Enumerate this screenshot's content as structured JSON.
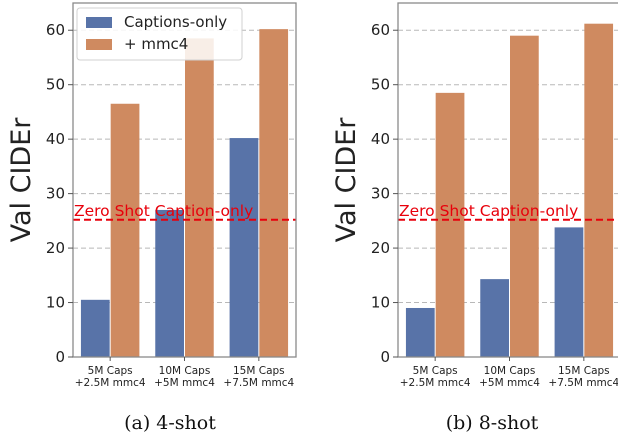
{
  "chart_data": [
    {
      "type": "bar",
      "caption": "(a) 4-shot",
      "ylabel": "Val CIDEr",
      "ylim": [
        0,
        65
      ],
      "yticks": [
        "0",
        "10",
        "20",
        "30",
        "40",
        "50",
        "60"
      ],
      "categories": [
        [
          "5M Caps",
          "+2.5M mmc4"
        ],
        [
          "10M Caps",
          "+5M mmc4"
        ],
        [
          "15M Caps",
          "+7.5M mmc4"
        ]
      ],
      "series": [
        {
          "name": "Captions-only",
          "color": "#5873a8",
          "values": [
            10.5,
            27.0,
            40.2
          ]
        },
        {
          "name": "+ mmc4",
          "color": "#cf8a60",
          "values": [
            46.5,
            58.5,
            60.2
          ]
        }
      ],
      "reference_line": {
        "label": "Zero Shot Caption-only",
        "value": 25.2,
        "color": "#e8000b"
      },
      "grid": "horizontal dashed",
      "legend": "top-left"
    },
    {
      "type": "bar",
      "caption": "(b) 8-shot",
      "ylabel": "Val CIDEr",
      "ylim": [
        0,
        65
      ],
      "yticks": [
        "0",
        "10",
        "20",
        "30",
        "40",
        "50",
        "60"
      ],
      "categories": [
        [
          "5M Caps",
          "+2.5M mmc4"
        ],
        [
          "10M Caps",
          "+5M mmc4"
        ],
        [
          "15M Caps",
          "+7.5M mmc4"
        ]
      ],
      "series": [
        {
          "name": "Captions-only",
          "color": "#5873a8",
          "values": [
            9.0,
            14.3,
            23.8
          ]
        },
        {
          "name": "+ mmc4",
          "color": "#cf8a60",
          "values": [
            48.5,
            59.0,
            61.2
          ]
        }
      ],
      "reference_line": {
        "label": "Zero Shot Caption-only",
        "value": 25.2,
        "color": "#e8000b"
      },
      "grid": "horizontal dashed",
      "legend": "none"
    }
  ]
}
